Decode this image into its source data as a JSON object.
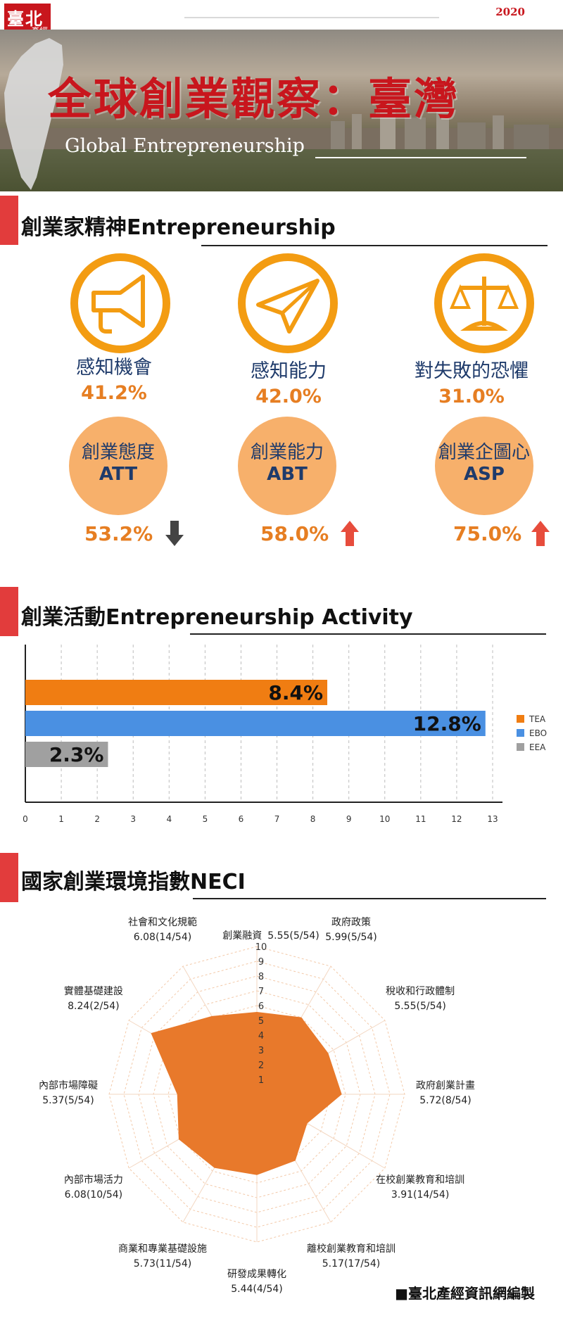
{
  "header": {
    "logo_top": "臺北",
    "logo_bottom": "產經",
    "year": "2020",
    "title": "全球創業觀察：臺灣",
    "subtitle": "Global Entrepreneurship"
  },
  "section1": {
    "title": "創業家精神Entrepreneurship",
    "icons": [
      {
        "icon": "megaphone-icon",
        "label": "感知機會",
        "value": "41.2%"
      },
      {
        "icon": "paper-plane-icon",
        "label": "感知能力",
        "value": "42.0%"
      },
      {
        "icon": "balance-scale-icon",
        "label": "對失敗的恐懼",
        "value": "31.0%"
      }
    ],
    "attitudes": [
      {
        "zh": "創業態度",
        "en": "ATT",
        "value": "53.2%",
        "trend": "down",
        "trend_color": "#444444"
      },
      {
        "zh": "創業能力",
        "en": "ABT",
        "value": "58.0%",
        "trend": "up",
        "trend_color": "#e74c3c"
      },
      {
        "zh": "創業企圖心",
        "en": "ASP",
        "value": "75.0%",
        "trend": "up",
        "trend_color": "#e74c3c"
      }
    ]
  },
  "section2": {
    "title": "創業活動Entrepreneurship Activity"
  },
  "section3": {
    "title": "國家創業環境指數NECI"
  },
  "footer": "■臺北產經資訊網編製",
  "chart_data": [
    {
      "type": "bar",
      "orientation": "horizontal",
      "categories": [
        "TEA",
        "EBO",
        "EEA"
      ],
      "values": [
        8.4,
        12.8,
        2.3
      ],
      "data_labels": [
        "8.4%",
        "12.8%",
        "2.3%"
      ],
      "colors": [
        "#f07d12",
        "#4a90e2",
        "#a0a0a0"
      ],
      "legend": [
        {
          "name": "TEA",
          "color": "#f07d12"
        },
        {
          "name": "EBO",
          "color": "#4a90e2"
        },
        {
          "name": "EEA",
          "color": "#a0a0a0"
        }
      ],
      "legend_position": "right",
      "xlim": [
        0,
        13
      ],
      "xticks": [
        0,
        1,
        2,
        3,
        4,
        5,
        6,
        7,
        8,
        9,
        10,
        11,
        12,
        13
      ],
      "grid": "vertical dashed"
    },
    {
      "type": "radar",
      "rlim": [
        0,
        10
      ],
      "rticks": [
        1,
        2,
        3,
        4,
        5,
        6,
        7,
        8,
        9,
        10
      ],
      "color": "#e8792b",
      "axes": [
        {
          "name": "創業融資",
          "value": 5.55,
          "label": "5.55(5/54)"
        },
        {
          "name": "政府政策",
          "value": 5.99,
          "label": "5.99(5/54)"
        },
        {
          "name": "稅收和行政體制",
          "value": 5.55,
          "label": "5.55(5/54)"
        },
        {
          "name": "政府創業計畫",
          "value": 5.72,
          "label": "5.72(8/54)"
        },
        {
          "name": "在校創業教育和培訓",
          "value": 3.91,
          "label": "3.91(14/54)"
        },
        {
          "name": "離校創業教育和培訓",
          "value": 5.17,
          "label": "5.17(17/54)"
        },
        {
          "name": "研發成果轉化",
          "value": 5.44,
          "label": "5.44(4/54)"
        },
        {
          "name": "商業和專業基礎設施",
          "value": 5.73,
          "label": "5.73(11/54)"
        },
        {
          "name": "內部市場活力",
          "value": 6.08,
          "label": "6.08(10/54)"
        },
        {
          "name": "內部市場障礙",
          "value": 5.37,
          "label": "5.37(5/54)"
        },
        {
          "name": "實體基礎建設",
          "value": 8.24,
          "label": "8.24(2/54)"
        },
        {
          "name": "社會和文化規範",
          "value": 6.08,
          "label": "6.08(14/54)"
        }
      ]
    }
  ]
}
